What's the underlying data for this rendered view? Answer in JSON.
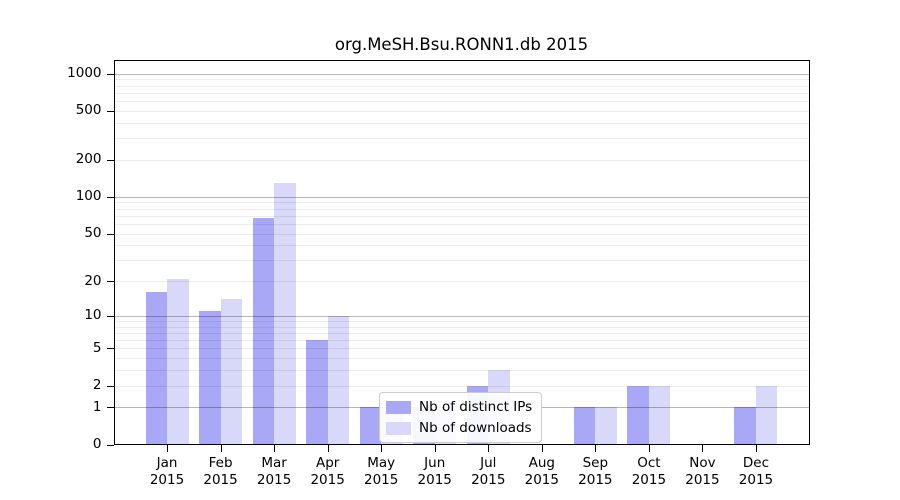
{
  "title": "org.MeSH.Bsu.RONN1.db 2015",
  "legend": {
    "items": [
      {
        "label": "Nb of distinct IPs",
        "color": "#a8a8f6"
      },
      {
        "label": "Nb of downloads",
        "color": "#d8d8f8"
      }
    ]
  },
  "y_axis": {
    "tick_values": [
      0,
      1,
      2,
      5,
      10,
      20,
      50,
      100,
      200,
      500,
      1000
    ],
    "tick_labels": [
      "0",
      "1",
      "2",
      "5",
      "10",
      "20",
      "50",
      "100",
      "200",
      "500",
      "1000"
    ]
  },
  "x_axis": {
    "year": "2015",
    "months": [
      "Jan",
      "Feb",
      "Mar",
      "Apr",
      "May",
      "Jun",
      "Jul",
      "Aug",
      "Sep",
      "Oct",
      "Nov",
      "Dec"
    ]
  },
  "colors": {
    "bar_dark": "#a8a8f6",
    "bar_light": "#d8d8f8",
    "grid_major": "rgba(0,0,0,0.28)",
    "grid_minor": "rgba(0,0,0,0.07)",
    "axis": "#000000",
    "background": "#ffffff"
  },
  "chart_data": {
    "type": "bar",
    "title": "org.MeSH.Bsu.RONN1.db 2015",
    "categories": [
      "Jan 2015",
      "Feb 2015",
      "Mar 2015",
      "Apr 2015",
      "May 2015",
      "Jun 2015",
      "Jul 2015",
      "Aug 2015",
      "Sep 2015",
      "Oct 2015",
      "Nov 2015",
      "Dec 2015"
    ],
    "series": [
      {
        "name": "Nb of distinct IPs",
        "color": "#a8a8f6",
        "values": [
          16,
          11,
          67,
          6,
          1,
          1,
          2,
          0,
          1,
          2,
          0,
          1
        ]
      },
      {
        "name": "Nb of downloads",
        "color": "#d8d8f8",
        "values": [
          21,
          14,
          131,
          10,
          1,
          1,
          3,
          0,
          1,
          2,
          0,
          2
        ]
      }
    ],
    "xlabel": "",
    "ylabel": "",
    "y_scale": "log(1+x)",
    "y_ticks": [
      0,
      1,
      2,
      5,
      10,
      20,
      50,
      100,
      200,
      500,
      1000
    ],
    "ylim": [
      0,
      1100
    ],
    "grid": true,
    "grid_major_at": [
      1,
      10,
      100,
      1000
    ],
    "legend_position": "lower-center"
  }
}
